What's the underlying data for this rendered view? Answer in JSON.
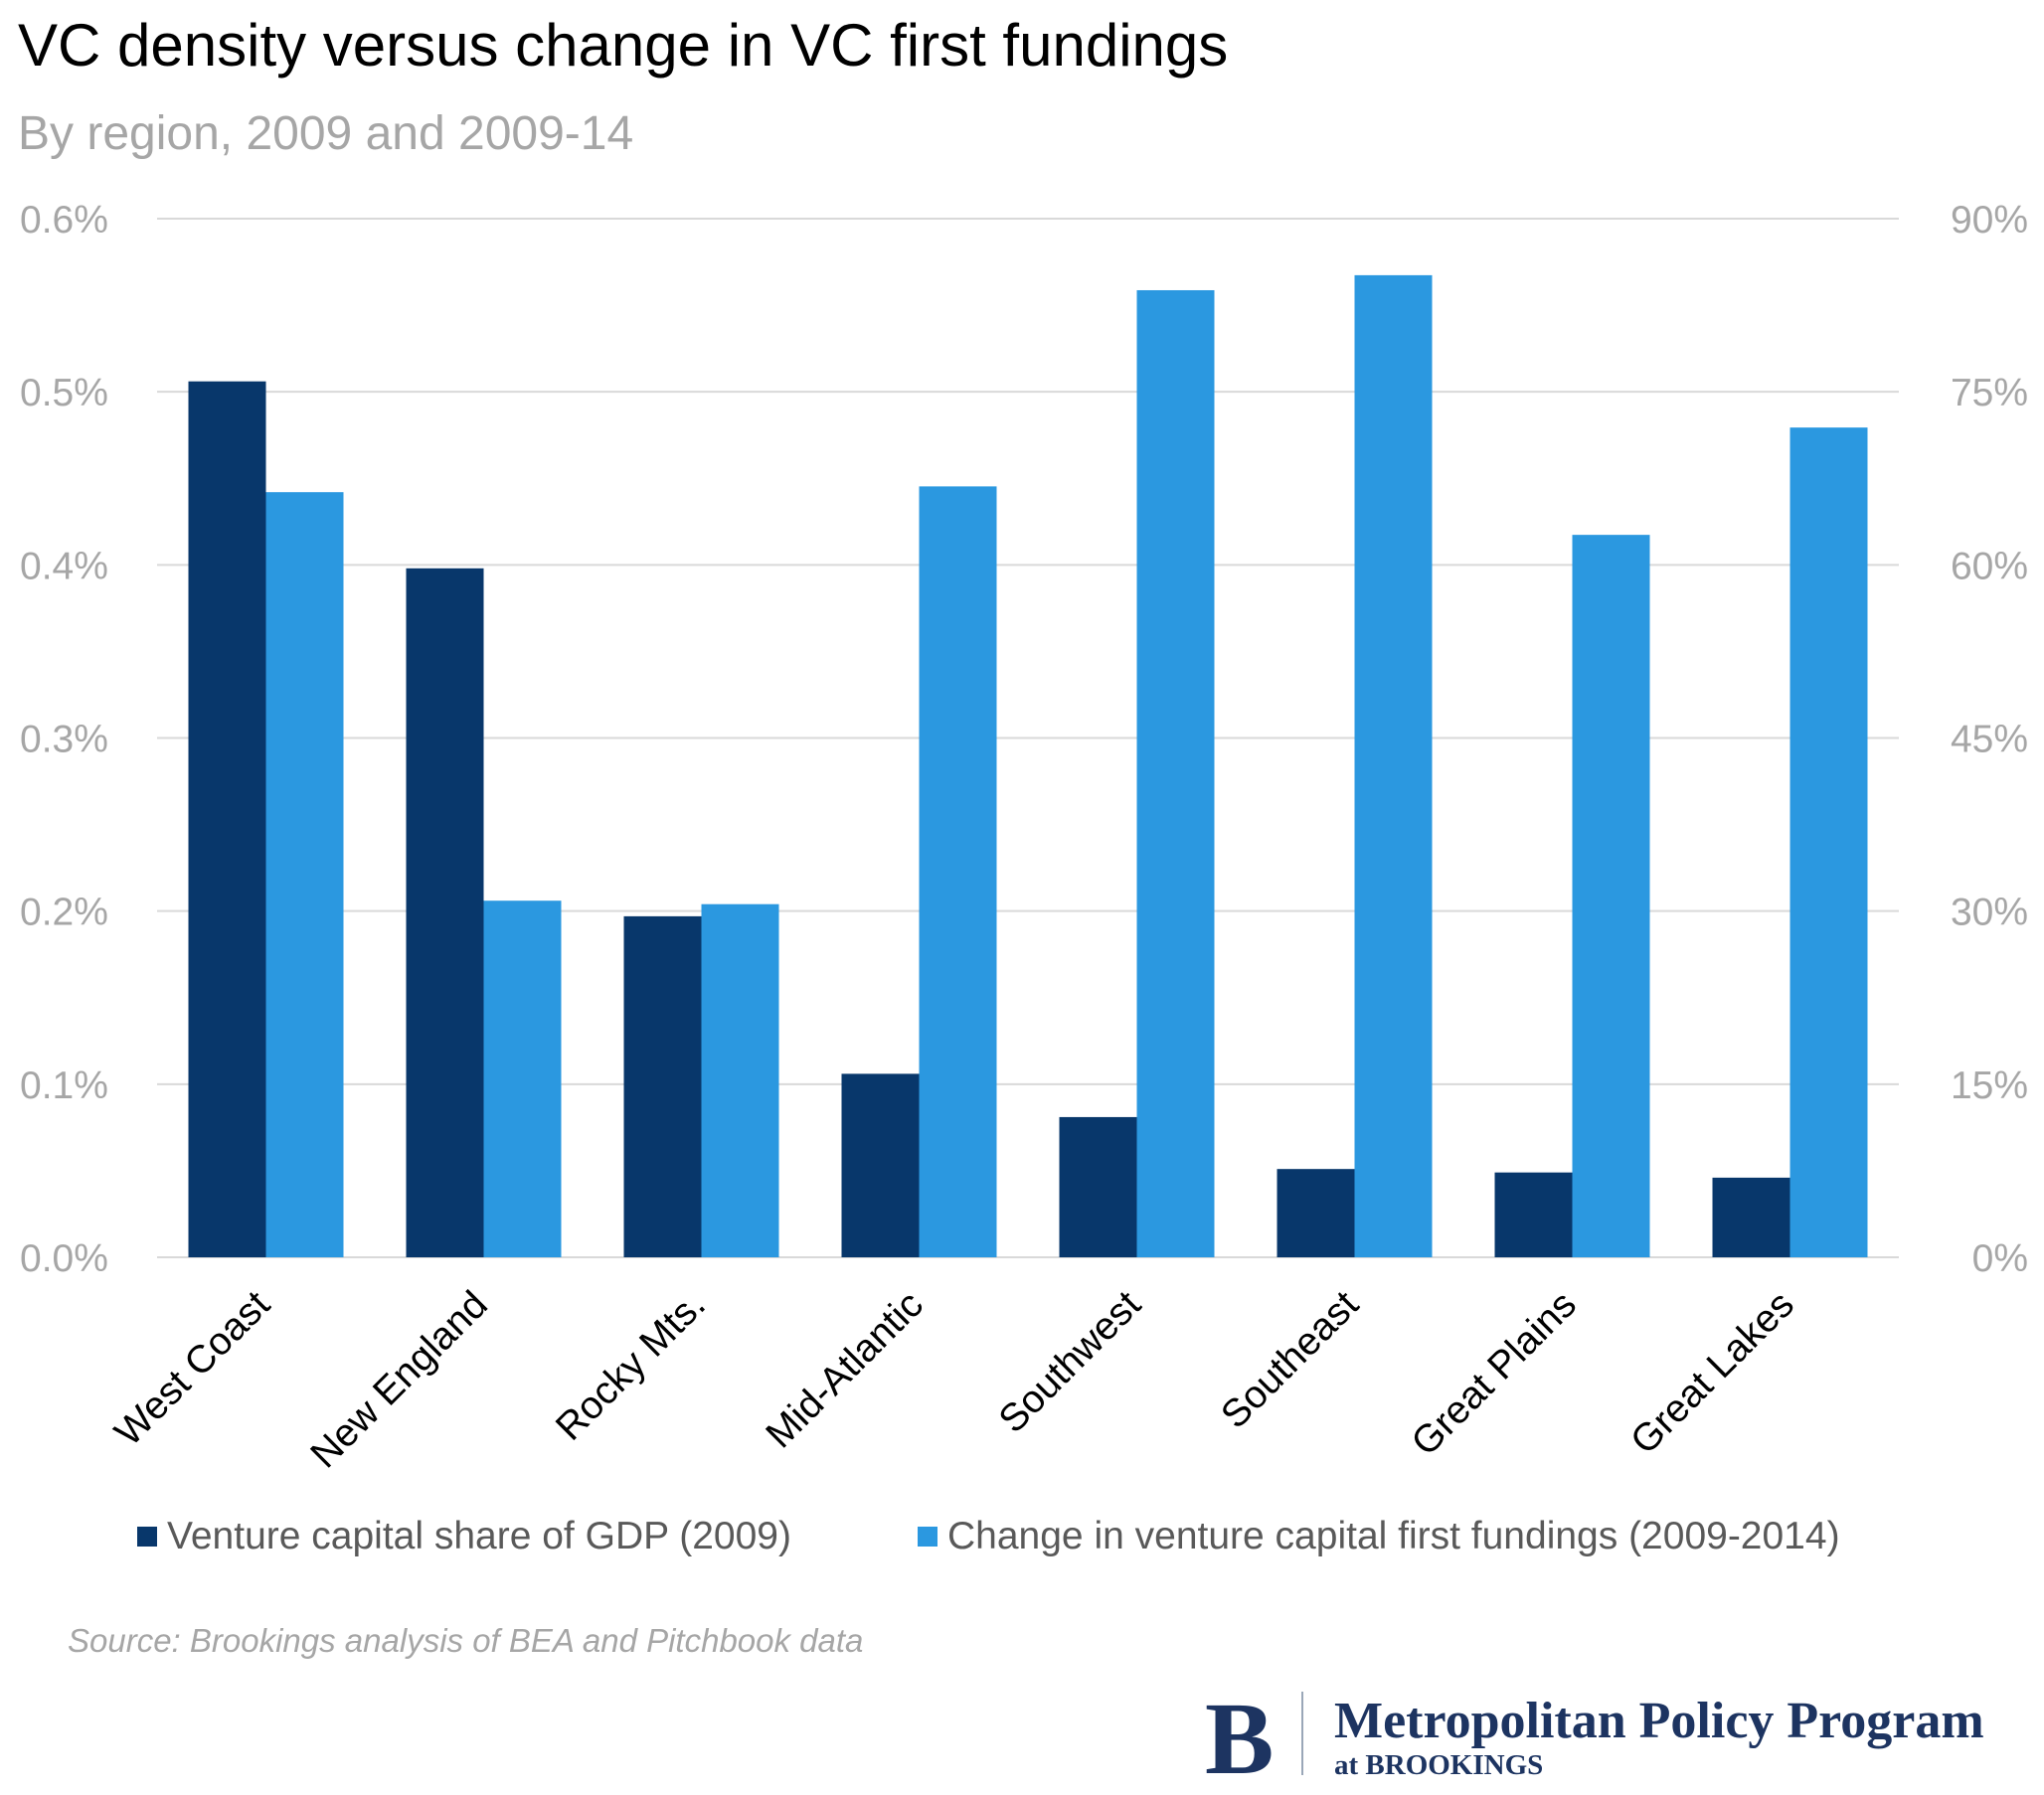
{
  "chart_data": {
    "type": "bar",
    "title": "VC density versus change in VC first fundings",
    "subtitle": "By region, 2009 and 2009-14",
    "categories": [
      "West Coast",
      "New England",
      "Rocky Mts.",
      "Mid-Atlantic",
      "Southwest",
      "Southeast",
      "Great Plains",
      "Great Lakes"
    ],
    "series": [
      {
        "name": "Venture capital share of GDP (2009)",
        "axis": "left",
        "color": "#08376b",
        "values": [
          0.506,
          0.398,
          0.197,
          0.106,
          0.081,
          0.051,
          0.049,
          0.046
        ]
      },
      {
        "name": "Change in venture capital first fundings (2009-2014)",
        "axis": "right",
        "color": "#2b98e0",
        "values": [
          66.3,
          30.9,
          30.6,
          66.8,
          83.8,
          85.1,
          62.6,
          71.9
        ]
      }
    ],
    "y_left": {
      "min": 0,
      "max": 0.6,
      "ticks": [
        0,
        0.1,
        0.2,
        0.3,
        0.4,
        0.5,
        0.6
      ],
      "tick_labels": [
        "0.0%",
        "0.1%",
        "0.2%",
        "0.3%",
        "0.4%",
        "0.5%",
        "0.6%"
      ]
    },
    "y_right": {
      "min": 0,
      "max": 90,
      "ticks": [
        0,
        15,
        30,
        45,
        60,
        75,
        90
      ],
      "tick_labels": [
        "0%",
        "15%",
        "30%",
        "45%",
        "60%",
        "75%",
        "90%"
      ]
    },
    "grid": true,
    "legend_position": "bottom",
    "xlabel": "",
    "ylabel": ""
  },
  "source": "Source: Brookings analysis of BEA and Pitchbook data",
  "logo": {
    "mark": "B",
    "name": "Metropolitan Policy Program",
    "sub": "at BROOKINGS",
    "color": "#1d3461"
  },
  "colors": {
    "grid": "#d9d9d9",
    "tick_text": "#a6a6a6"
  }
}
